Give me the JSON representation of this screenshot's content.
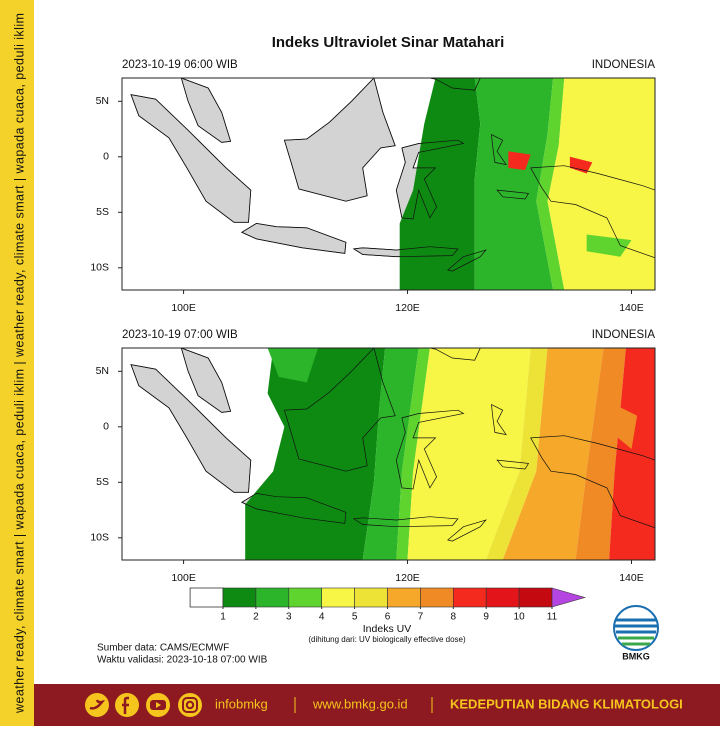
{
  "sidebar": "weather ready, climate smart  |  wapada cuaca, peduli iklim  |  weather ready, climate smart  |  wapada cuaca, peduli iklim",
  "title": "Indeks Ultraviolet Sinar Matahari",
  "maps": [
    {
      "time": "2023-10-19  06:00 WIB",
      "region": "INDONESIA",
      "xlim": [
        94.5,
        142.1
      ],
      "ylim": [
        -12,
        7.1
      ],
      "xticks": [
        {
          "value": 100,
          "label": "100E"
        },
        {
          "value": 120,
          "label": "120E"
        },
        {
          "value": 140,
          "label": "140E"
        }
      ],
      "yticks": [
        {
          "value": 5,
          "label": "5N"
        },
        0,
        {
          "value": -5,
          "label": "5S"
        },
        {
          "value": -10,
          "label": "10S"
        }
      ]
    },
    {
      "time": "2023-10-19  07:00 WIB",
      "region": "INDONESIA",
      "xlim": [
        94.5,
        142.1
      ],
      "ylim": [
        -12,
        7.1
      ],
      "xticks": [
        {
          "value": 100,
          "label": "100E"
        },
        {
          "value": 120,
          "label": "120E"
        },
        {
          "value": 140,
          "label": "140E"
        }
      ],
      "yticks": [
        {
          "value": 5,
          "label": "5N"
        },
        0,
        {
          "value": -5,
          "label": "5S"
        },
        {
          "value": -10,
          "label": "10S"
        }
      ]
    }
  ],
  "colorbar": {
    "label": "Indeks UV",
    "note": "(dihitung dari: UV biologically effective dose)",
    "ticks": [
      1,
      2,
      3,
      4,
      5,
      6,
      7,
      8,
      9,
      10,
      11
    ],
    "colors": [
      "#ffffff",
      "#0e8a12",
      "#2cb52a",
      "#5fd42e",
      "#f7f545",
      "#ede337",
      "#f6a82a",
      "#ef8a24",
      "#f42a1e",
      "#e3141a",
      "#c40a10",
      "#b545e0"
    ]
  },
  "source": "Sumber data: CAMS/ECMWF",
  "validity": "Waktu validasi: 2023-10-18 07:00 WIB",
  "logo": "BMKG",
  "footer": {
    "handle": "infobmkg",
    "website": "www.bmkg.go.id",
    "unit": "KEDEPUTIAN BIDANG KLIMATOLOGI"
  }
}
